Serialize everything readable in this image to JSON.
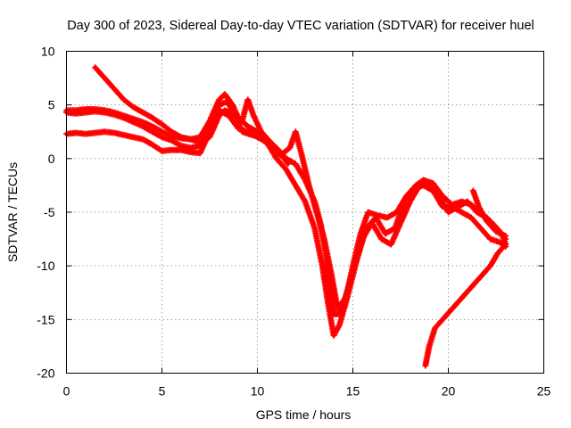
{
  "chart_data": {
    "type": "scatter",
    "title": "Day 300 of 2023, Sidereal Day-to-day VTEC variation (SDTVAR) for receiver huel",
    "xlabel": "GPS time / hours",
    "ylabel": "SDTVAR / TECUs",
    "xlim": [
      0,
      25
    ],
    "ylim": [
      -20,
      10
    ],
    "xticks": [
      0,
      5,
      10,
      15,
      20,
      25
    ],
    "yticks": [
      -20,
      -15,
      -10,
      -5,
      0,
      5,
      10
    ],
    "xtick_labels": [
      "0",
      "5",
      "10",
      "15",
      "20",
      "25"
    ],
    "ytick_labels": [
      "-20",
      "-15",
      "-10",
      "-5",
      "0",
      "5",
      "10"
    ],
    "grid": true,
    "marker": "+",
    "color": "#ff0000",
    "series": [
      {
        "name": "track-1",
        "points": [
          [
            0.0,
            4.5
          ],
          [
            0.5,
            4.5
          ],
          [
            1.0,
            4.6
          ],
          [
            1.5,
            4.6
          ],
          [
            2.0,
            4.5
          ],
          [
            2.5,
            4.3
          ],
          [
            3.0,
            4.0
          ],
          [
            3.5,
            3.7
          ],
          [
            4.0,
            3.4
          ],
          [
            4.5,
            3.0
          ],
          [
            5.0,
            2.5
          ],
          [
            5.5,
            2.1
          ],
          [
            6.0,
            1.9
          ],
          [
            6.5,
            1.8
          ],
          [
            7.0,
            2.0
          ],
          [
            7.5,
            3.5
          ],
          [
            8.0,
            5.5
          ],
          [
            8.3,
            6.0
          ],
          [
            8.7,
            5.0
          ],
          [
            9.0,
            3.8
          ],
          [
            9.5,
            3.0
          ],
          [
            10.0,
            2.5
          ],
          [
            10.5,
            1.8
          ],
          [
            11.0,
            1.0
          ],
          [
            11.5,
            0.0
          ],
          [
            12.0,
            -0.5
          ],
          [
            12.5,
            -2.0
          ],
          [
            13.0,
            -4.0
          ],
          [
            13.3,
            -6.0
          ],
          [
            13.6,
            -9.0
          ],
          [
            13.8,
            -12.0
          ],
          [
            14.0,
            -14.5
          ],
          [
            14.3,
            -14.5
          ],
          [
            14.7,
            -12.5
          ],
          [
            15.0,
            -10.0
          ],
          [
            15.4,
            -7.0
          ],
          [
            15.8,
            -5.0
          ],
          [
            16.3,
            -5.3
          ],
          [
            16.8,
            -5.5
          ],
          [
            17.3,
            -5.0
          ],
          [
            17.8,
            -3.5
          ],
          [
            18.3,
            -2.5
          ],
          [
            18.7,
            -2.0
          ],
          [
            19.2,
            -2.3
          ],
          [
            19.7,
            -3.5
          ],
          [
            20.2,
            -4.3
          ],
          [
            20.7,
            -4.0
          ],
          [
            21.2,
            -4.3
          ],
          [
            21.7,
            -5.0
          ],
          [
            22.3,
            -6.0
          ],
          [
            22.8,
            -7.0
          ],
          [
            23.0,
            -8.0
          ]
        ]
      },
      {
        "name": "track-2",
        "points": [
          [
            0.0,
            4.3
          ],
          [
            0.5,
            4.2
          ],
          [
            1.0,
            4.3
          ],
          [
            1.5,
            4.4
          ],
          [
            2.0,
            4.3
          ],
          [
            2.5,
            4.1
          ],
          [
            3.0,
            3.8
          ],
          [
            3.5,
            3.4
          ],
          [
            4.0,
            3.0
          ],
          [
            4.5,
            2.5
          ],
          [
            5.0,
            2.0
          ],
          [
            5.5,
            1.7
          ],
          [
            6.0,
            1.2
          ],
          [
            6.5,
            1.0
          ],
          [
            7.0,
            1.2
          ],
          [
            7.5,
            2.8
          ],
          [
            8.0,
            5.0
          ],
          [
            8.4,
            5.3
          ],
          [
            8.8,
            4.2
          ],
          [
            9.2,
            2.5
          ],
          [
            9.7,
            2.2
          ],
          [
            10.2,
            2.0
          ],
          [
            10.7,
            1.0
          ],
          [
            11.2,
            0.3
          ],
          [
            11.7,
            1.0
          ],
          [
            12.0,
            2.5
          ],
          [
            12.3,
            0.5
          ],
          [
            12.7,
            -2.5
          ],
          [
            13.1,
            -5.0
          ],
          [
            13.5,
            -7.5
          ],
          [
            13.9,
            -11.0
          ],
          [
            14.2,
            -14.0
          ],
          [
            14.6,
            -13.0
          ],
          [
            15.0,
            -10.5
          ],
          [
            15.5,
            -7.5
          ],
          [
            16.0,
            -6.0
          ],
          [
            16.5,
            -7.5
          ],
          [
            17.0,
            -8.0
          ],
          [
            17.5,
            -6.0
          ],
          [
            18.0,
            -4.0
          ],
          [
            18.5,
            -2.5
          ],
          [
            19.0,
            -2.3
          ],
          [
            19.5,
            -3.5
          ],
          [
            20.0,
            -5.0
          ],
          [
            20.5,
            -4.5
          ],
          [
            21.0,
            -4.0
          ],
          [
            21.5,
            -5.0
          ],
          [
            22.0,
            -5.5
          ],
          [
            22.5,
            -6.5
          ],
          [
            23.0,
            -7.5
          ]
        ]
      },
      {
        "name": "track-3",
        "points": [
          [
            0.0,
            2.3
          ],
          [
            0.5,
            2.4
          ],
          [
            1.0,
            2.3
          ],
          [
            1.5,
            2.4
          ],
          [
            2.0,
            2.5
          ],
          [
            2.5,
            2.4
          ],
          [
            3.0,
            2.2
          ],
          [
            3.5,
            2.0
          ],
          [
            4.0,
            1.8
          ],
          [
            4.5,
            1.3
          ],
          [
            5.0,
            0.7
          ],
          [
            5.5,
            0.8
          ],
          [
            6.0,
            0.8
          ],
          [
            6.5,
            0.6
          ],
          [
            7.0,
            0.5
          ],
          [
            7.5,
            2.5
          ],
          [
            8.0,
            4.5
          ],
          [
            8.5,
            4.0
          ],
          [
            9.0,
            2.8
          ],
          [
            9.5,
            2.5
          ],
          [
            10.0,
            2.0
          ],
          [
            10.5,
            1.5
          ],
          [
            11.0,
            0.0
          ],
          [
            11.5,
            -1.0
          ],
          [
            12.0,
            -2.5
          ],
          [
            12.5,
            -4.0
          ],
          [
            13.0,
            -6.5
          ],
          [
            13.4,
            -10.0
          ],
          [
            13.7,
            -13.5
          ],
          [
            14.0,
            -16.5
          ],
          [
            14.3,
            -15.5
          ],
          [
            14.7,
            -13.0
          ],
          [
            15.2,
            -9.5
          ],
          [
            15.7,
            -6.5
          ],
          [
            16.2,
            -5.5
          ],
          [
            16.7,
            -7.0
          ],
          [
            17.2,
            -6.5
          ],
          [
            17.7,
            -4.0
          ],
          [
            18.2,
            -2.8
          ],
          [
            18.7,
            -2.5
          ],
          [
            19.2,
            -3.0
          ],
          [
            19.7,
            -4.5
          ],
          [
            20.2,
            -4.5
          ],
          [
            20.7,
            -5.0
          ],
          [
            21.2,
            -5.5
          ],
          [
            21.7,
            -6.5
          ],
          [
            22.2,
            -7.5
          ],
          [
            22.7,
            -7.8
          ],
          [
            23.0,
            -8.2
          ]
        ]
      },
      {
        "name": "track-4",
        "points": [
          [
            1.5,
            8.5
          ],
          [
            2.0,
            7.5
          ],
          [
            2.5,
            6.5
          ],
          [
            3.0,
            5.5
          ],
          [
            3.5,
            4.8
          ],
          [
            4.0,
            4.3
          ],
          [
            4.5,
            3.8
          ],
          [
            5.0,
            3.2
          ],
          [
            5.5,
            2.5
          ],
          [
            6.0,
            2.0
          ],
          [
            6.5,
            1.8
          ],
          [
            7.0,
            1.5
          ],
          [
            7.5,
            2.0
          ],
          [
            8.0,
            4.0
          ],
          [
            8.3,
            4.5
          ],
          [
            8.8,
            4.0
          ],
          [
            9.2,
            3.5
          ],
          [
            9.5,
            5.5
          ],
          [
            9.8,
            4.0
          ],
          [
            10.2,
            2.5
          ],
          [
            10.7,
            1.5
          ],
          [
            11.2,
            0.5
          ],
          [
            11.6,
            -0.5
          ]
        ]
      },
      {
        "name": "track-5",
        "points": [
          [
            18.8,
            -19.3
          ],
          [
            19.0,
            -17.5
          ],
          [
            19.3,
            -15.8
          ],
          [
            19.7,
            -15.0
          ],
          [
            20.2,
            -14.0
          ],
          [
            20.7,
            -13.0
          ],
          [
            21.2,
            -12.0
          ],
          [
            21.7,
            -11.0
          ],
          [
            22.2,
            -10.0
          ],
          [
            22.6,
            -8.8
          ],
          [
            23.0,
            -8.0
          ]
        ]
      },
      {
        "name": "track-6",
        "points": [
          [
            21.3,
            -3.0
          ],
          [
            21.6,
            -4.5
          ],
          [
            22.0,
            -5.8
          ],
          [
            22.5,
            -6.8
          ],
          [
            23.0,
            -7.2
          ]
        ]
      }
    ]
  }
}
